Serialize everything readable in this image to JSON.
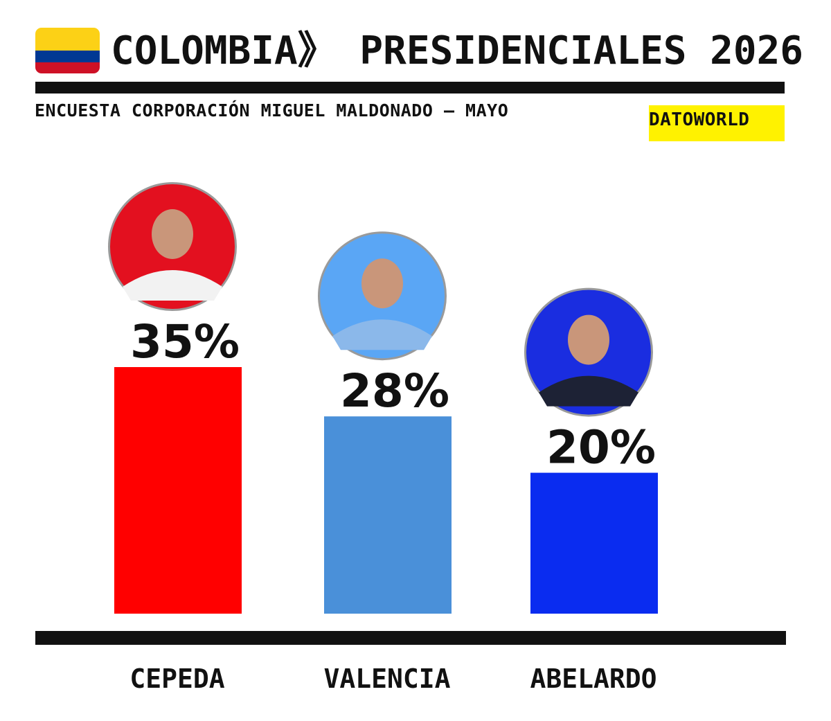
{
  "header": {
    "title": "COLOMBIA》 PRESIDENCIALES 2026",
    "subtitle": "ENCUESTA CORPORACIÓN MIGUEL MALDONADO – MAYO",
    "brand": "DATOWORLD"
  },
  "colors": {
    "flag_yellow": "#FCD116",
    "flag_blue": "#003893",
    "flag_red": "#CE1126",
    "brand_bg": "#FFF200",
    "rule": "#111111"
  },
  "chart_data": {
    "type": "bar",
    "title": "COLOMBIA》 PRESIDENCIALES 2026",
    "subtitle": "ENCUESTA CORPORACIÓN MIGUEL MALDONADO – MAYO",
    "categories": [
      "CEPEDA",
      "VALENCIA",
      "ABELARDO"
    ],
    "values": [
      35,
      28,
      20
    ],
    "value_labels": [
      "35%",
      "28%",
      "20%"
    ],
    "bar_colors": [
      "#FF0000",
      "#4A90D9",
      "#0A2CF0"
    ],
    "avatar_colors": [
      "#E3101F",
      "#5AA6F5",
      "#1A2DE0"
    ],
    "avatar_icons": [
      "candidate-photo-icon",
      "candidate-photo-icon",
      "candidate-photo-icon"
    ],
    "ylim": [
      0,
      35
    ],
    "grid": false,
    "legend": "none"
  }
}
